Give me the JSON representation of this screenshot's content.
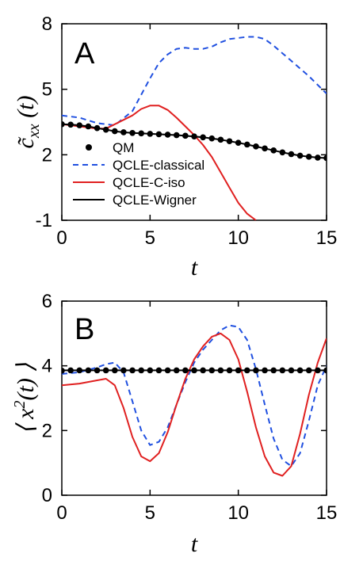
{
  "chart_data": [
    {
      "panel": "A",
      "type": "line",
      "xlabel": "t",
      "ylabel": "c̃xx (t)",
      "xlim": [
        0,
        15
      ],
      "ylim": [
        -1,
        8
      ],
      "xticks": [
        0,
        5,
        10,
        15
      ],
      "yticks": [
        -1,
        2,
        5,
        8
      ],
      "legend_position": "bottom-left",
      "series": [
        {
          "name": "QM",
          "style": "dots",
          "color": "#000000",
          "x": [
            0,
            0.5,
            1,
            1.5,
            2,
            2.5,
            3,
            3.5,
            4,
            4.5,
            5,
            5.5,
            6,
            6.5,
            7,
            7.5,
            8,
            8.5,
            9,
            9.5,
            10,
            10.5,
            11,
            11.5,
            12,
            12.5,
            13,
            13.5,
            14,
            14.5,
            15
          ],
          "y": [
            3.4,
            3.38,
            3.35,
            3.3,
            3.22,
            3.15,
            3.08,
            3.03,
            3.0,
            2.98,
            2.96,
            2.94,
            2.92,
            2.9,
            2.87,
            2.84,
            2.8,
            2.75,
            2.69,
            2.62,
            2.55,
            2.47,
            2.38,
            2.29,
            2.2,
            2.11,
            2.03,
            1.96,
            1.91,
            1.87,
            1.85
          ]
        },
        {
          "name": "QCLE-classical",
          "style": "dashed",
          "color": "#2050e0",
          "x": [
            0,
            1,
            2,
            3,
            4,
            5,
            5.5,
            6,
            6.5,
            7,
            7.5,
            8,
            8.5,
            9,
            9.5,
            10,
            10.5,
            11,
            11.5,
            12,
            13,
            14,
            15
          ],
          "y": [
            3.8,
            3.7,
            3.45,
            3.35,
            4.0,
            5.5,
            6.2,
            6.6,
            6.85,
            6.9,
            6.85,
            6.85,
            6.95,
            7.15,
            7.3,
            7.35,
            7.4,
            7.4,
            7.3,
            7.0,
            6.3,
            5.6,
            4.8
          ]
        },
        {
          "name": "QCLE-C-iso",
          "style": "solid",
          "color": "#e02020",
          "x": [
            0,
            1,
            2,
            2.5,
            3,
            4,
            4.5,
            5,
            5.5,
            6,
            6.5,
            7,
            7.5,
            8,
            8.5,
            9,
            9.5,
            10,
            10.5,
            11
          ],
          "y": [
            3.4,
            3.3,
            3.2,
            3.2,
            3.4,
            3.8,
            4.1,
            4.25,
            4.25,
            4.05,
            3.7,
            3.3,
            2.9,
            2.45,
            1.9,
            1.2,
            0.5,
            -0.2,
            -0.7,
            -1.0
          ]
        },
        {
          "name": "QCLE-Wigner",
          "style": "solid",
          "color": "#000000",
          "x": [
            0,
            0.5,
            1,
            1.5,
            2,
            2.5,
            3,
            3.5,
            4,
            4.5,
            5,
            5.5,
            6,
            6.5,
            7,
            7.5,
            8,
            8.5,
            9,
            9.5,
            10,
            10.5,
            11,
            11.5,
            12,
            12.5,
            13,
            13.5,
            14,
            14.5,
            15
          ],
          "y": [
            3.4,
            3.38,
            3.35,
            3.3,
            3.22,
            3.15,
            3.08,
            3.03,
            3.0,
            2.98,
            2.96,
            2.94,
            2.92,
            2.9,
            2.87,
            2.84,
            2.8,
            2.75,
            2.69,
            2.62,
            2.55,
            2.47,
            2.38,
            2.29,
            2.2,
            2.11,
            2.03,
            1.96,
            1.91,
            1.87,
            1.85
          ]
        }
      ]
    },
    {
      "panel": "B",
      "type": "line",
      "xlabel": "t",
      "ylabel": "⟨ x²(t) ⟩",
      "xlim": [
        0,
        15
      ],
      "ylim": [
        0,
        6
      ],
      "xticks": [
        0,
        5,
        10,
        15
      ],
      "yticks": [
        0,
        2,
        4,
        6
      ],
      "series": [
        {
          "name": "QM",
          "style": "dots",
          "color": "#000000",
          "x": [
            0,
            0.5,
            1,
            1.5,
            2,
            2.5,
            3,
            3.5,
            4,
            4.5,
            5,
            5.5,
            6,
            6.5,
            7,
            7.5,
            8,
            8.5,
            9,
            9.5,
            10,
            10.5,
            11,
            11.5,
            12,
            12.5,
            13,
            13.5,
            14,
            14.5,
            15
          ],
          "y": [
            3.85,
            3.86,
            3.86,
            3.86,
            3.86,
            3.86,
            3.86,
            3.86,
            3.86,
            3.86,
            3.86,
            3.86,
            3.86,
            3.86,
            3.86,
            3.86,
            3.86,
            3.86,
            3.86,
            3.86,
            3.86,
            3.86,
            3.86,
            3.86,
            3.86,
            3.86,
            3.86,
            3.86,
            3.86,
            3.86,
            3.86
          ]
        },
        {
          "name": "QCLE-classical",
          "style": "dashed",
          "color": "#2050e0",
          "x": [
            0,
            1,
            2,
            2.5,
            3,
            3.5,
            4,
            4.5,
            5,
            5.5,
            6,
            6.5,
            7,
            7.5,
            8,
            8.5,
            9,
            9.5,
            10,
            10.5,
            11,
            11.5,
            12,
            12.5,
            13,
            13.5,
            14,
            14.5,
            15
          ],
          "y": [
            3.75,
            3.8,
            3.95,
            4.05,
            4.1,
            3.8,
            2.9,
            2.0,
            1.55,
            1.65,
            2.1,
            2.8,
            3.5,
            4.1,
            4.5,
            4.8,
            5.1,
            5.25,
            5.2,
            4.8,
            3.9,
            2.8,
            1.75,
            1.1,
            0.9,
            1.3,
            2.3,
            3.4,
            4.0
          ]
        },
        {
          "name": "QCLE-C-iso",
          "style": "solid",
          "color": "#e02020",
          "x": [
            0,
            1,
            2,
            2.5,
            3,
            3.5,
            4,
            4.5,
            5,
            5.5,
            6,
            6.5,
            7,
            7.5,
            8,
            8.5,
            9,
            9.5,
            10,
            10.5,
            11,
            11.5,
            12,
            12.5,
            13,
            13.5,
            14,
            14.5,
            15
          ],
          "y": [
            3.4,
            3.45,
            3.55,
            3.6,
            3.4,
            2.7,
            1.8,
            1.2,
            1.05,
            1.3,
            1.95,
            2.8,
            3.6,
            4.2,
            4.6,
            4.9,
            5.0,
            4.8,
            4.2,
            3.2,
            2.1,
            1.2,
            0.7,
            0.6,
            0.9,
            1.9,
            3.1,
            4.1,
            4.85
          ]
        },
        {
          "name": "QCLE-Wigner",
          "style": "solid",
          "color": "#000000",
          "x": [
            0,
            15
          ],
          "y": [
            3.86,
            3.86
          ]
        }
      ]
    }
  ],
  "panels": {
    "A": {
      "letter": "A",
      "xlabel": "t",
      "ylabel_main": "c̃",
      "ylabel_sub": "xx",
      "ylabel_tail": " (t)"
    },
    "B": {
      "letter": "B",
      "xlabel": "t",
      "ylabel_pre": "⟨ x",
      "ylabel_sup": "2",
      "ylabel_tail": "(t) ⟩"
    }
  },
  "legend": {
    "entries": [
      "QM",
      "QCLE-classical",
      "QCLE-C-iso",
      "QCLE-Wigner"
    ]
  }
}
